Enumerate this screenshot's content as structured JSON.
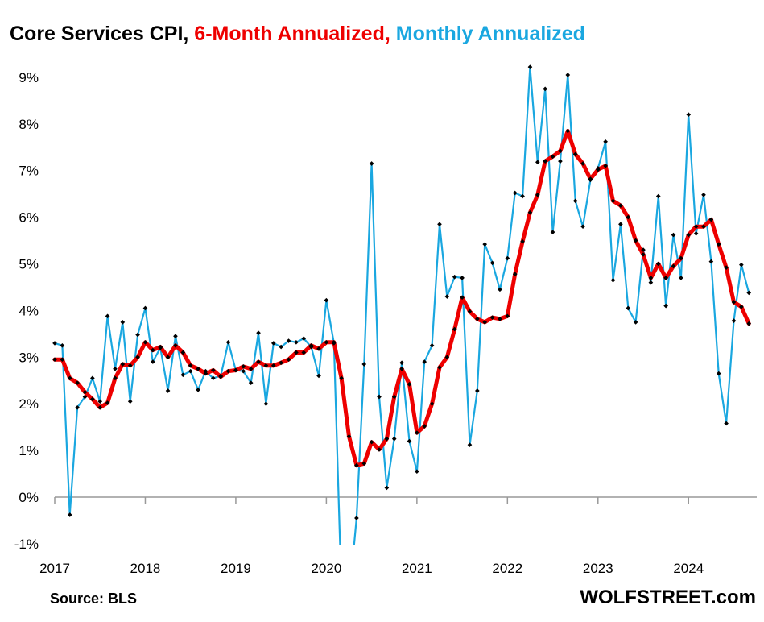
{
  "title": {
    "part1": "Core Services CPI, ",
    "part2": "6-Month Annualized, ",
    "part3": "Monthly Annualized"
  },
  "source": "Source: BLS",
  "brand": "WOLFSTREET.com",
  "colors": {
    "sixmonth": "#ee0000",
    "monthly": "#1aa7e0",
    "marker": "#000000",
    "title": "#000000"
  },
  "chart_data": {
    "type": "line",
    "x_start": "2017-01",
    "ylim": [
      -1,
      9.5
    ],
    "yticks": [
      -1,
      0,
      1,
      2,
      3,
      4,
      5,
      6,
      7,
      8,
      9
    ],
    "ytick_labels": [
      "-1%",
      "0%",
      "1%",
      "2%",
      "3%",
      "4%",
      "5%",
      "6%",
      "7%",
      "8%",
      "9%"
    ],
    "xtick_labels": [
      "2017",
      "2018",
      "2019",
      "2020",
      "2021",
      "2022",
      "2023",
      "2024"
    ],
    "series": [
      {
        "name": "6-Month Annualized",
        "values": [
          2.95,
          2.95,
          2.55,
          2.45,
          2.25,
          2.1,
          1.92,
          2.02,
          2.55,
          2.85,
          2.82,
          3.0,
          3.32,
          3.15,
          3.22,
          3.0,
          3.25,
          3.1,
          2.82,
          2.75,
          2.65,
          2.72,
          2.58,
          2.7,
          2.72,
          2.8,
          2.75,
          2.9,
          2.82,
          2.82,
          2.88,
          2.95,
          3.1,
          3.1,
          3.25,
          3.18,
          3.32,
          3.32,
          2.55,
          1.3,
          0.68,
          0.72,
          1.18,
          1.02,
          1.25,
          2.15,
          2.75,
          2.42,
          1.38,
          1.52,
          2.0,
          2.78,
          3.0,
          3.6,
          4.28,
          3.98,
          3.82,
          3.75,
          3.85,
          3.82,
          3.88,
          4.78,
          5.48,
          6.1,
          6.48,
          7.2,
          7.3,
          7.42,
          7.85,
          7.35,
          7.15,
          6.82,
          7.02,
          7.1,
          6.35,
          6.25,
          6.0,
          5.5,
          5.2,
          4.7,
          5.0,
          4.7,
          4.95,
          5.12,
          5.62,
          5.8,
          5.8,
          5.95,
          5.42,
          4.92,
          4.18,
          4.08,
          3.72
        ]
      },
      {
        "name": "Monthly Annualized",
        "values": [
          3.3,
          3.25,
          -0.38,
          1.92,
          2.15,
          2.55,
          2.05,
          3.88,
          2.75,
          3.75,
          2.05,
          3.48,
          4.05,
          2.9,
          3.2,
          2.28,
          3.45,
          2.62,
          2.7,
          2.3,
          2.7,
          2.55,
          2.6,
          3.32,
          2.72,
          2.7,
          2.45,
          3.52,
          2.0,
          3.3,
          3.22,
          3.35,
          3.32,
          3.4,
          3.22,
          2.6,
          4.22,
          3.3,
          -2.0,
          -2.2,
          -0.45,
          2.85,
          7.15,
          2.15,
          0.2,
          1.25,
          2.88,
          1.2,
          0.55,
          2.9,
          3.25,
          5.85,
          4.3,
          4.72,
          4.7,
          1.12,
          2.28,
          5.42,
          5.02,
          4.45,
          5.12,
          6.52,
          6.45,
          9.22,
          7.18,
          8.75,
          5.68,
          7.2,
          9.05,
          6.35,
          5.8,
          6.8,
          7.05,
          7.62,
          4.65,
          5.85,
          4.05,
          3.75,
          5.3,
          4.6,
          6.45,
          4.1,
          5.62,
          4.7,
          8.2,
          5.65,
          6.48,
          5.05,
          2.65,
          1.58,
          3.78,
          4.98,
          4.38
        ]
      }
    ]
  }
}
